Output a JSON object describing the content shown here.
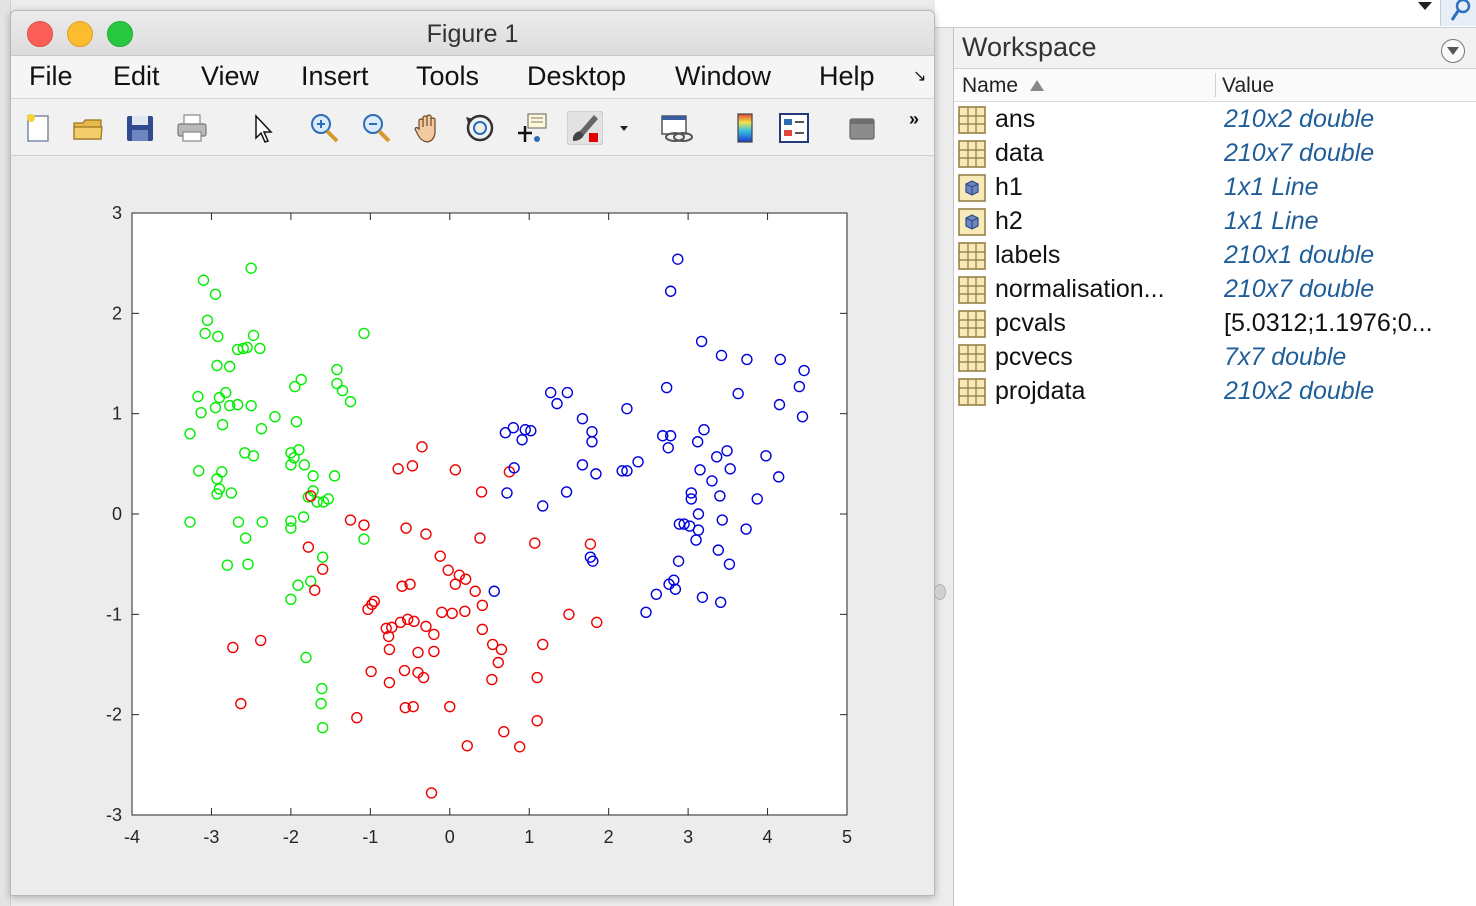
{
  "figure": {
    "title": "Figure 1",
    "menu": [
      "File",
      "Edit",
      "View",
      "Insert",
      "Tools",
      "Desktop",
      "Window",
      "Help"
    ],
    "menu_overflow": "↘",
    "toolbar": {
      "icons": [
        "new-figure-icon",
        "open-file-icon",
        "save-icon",
        "print-icon",
        "pointer-icon",
        "zoom-in-icon",
        "zoom-out-icon",
        "pan-hand-icon",
        "rotate-3d-icon",
        "data-cursor-icon",
        "brush-icon",
        "brush-dropdown-icon",
        "link-plot-icon",
        "colorbar-icon",
        "legend-icon",
        "hide-plot-tools-icon"
      ],
      "overflow": "»"
    }
  },
  "workspace": {
    "title": "Workspace",
    "columns": {
      "name": "Name",
      "value": "Value"
    },
    "variables": [
      {
        "name": "ans",
        "value": "210x2 double",
        "icon": "matrix-icon",
        "italic": true
      },
      {
        "name": "data",
        "value": "210x7 double",
        "icon": "matrix-icon",
        "italic": true
      },
      {
        "name": "h1",
        "value": "1x1 Line",
        "icon": "object-icon",
        "italic": true
      },
      {
        "name": "h2",
        "value": "1x1 Line",
        "icon": "object-icon",
        "italic": true
      },
      {
        "name": "labels",
        "value": "210x1 double",
        "icon": "matrix-icon",
        "italic": true
      },
      {
        "name": "normalisation...",
        "value": "210x7 double",
        "icon": "matrix-icon",
        "italic": true
      },
      {
        "name": "pcvals",
        "value": "[5.0312;1.1976;0...",
        "icon": "matrix-icon",
        "italic": false
      },
      {
        "name": "pcvecs",
        "value": "7x7 double",
        "icon": "matrix-icon",
        "italic": true
      },
      {
        "name": "projdata",
        "value": "210x2 double",
        "icon": "matrix-icon",
        "italic": true
      }
    ]
  },
  "colors": {
    "series_green": "#00ee00",
    "series_red": "#ee0000",
    "series_blue": "#0000dd",
    "value_text": "#1f5e99"
  },
  "chart_data": {
    "type": "scatter",
    "title": "",
    "xlabel": "",
    "ylabel": "",
    "xlim": [
      -4,
      5
    ],
    "ylim": [
      -3,
      3
    ],
    "xticks": [
      "-4",
      "-3",
      "-2",
      "-1",
      "0",
      "1",
      "2",
      "3",
      "4",
      "5"
    ],
    "yticks": [
      "-3",
      "-2",
      "-1",
      "0",
      "1",
      "2",
      "3"
    ],
    "grid": false,
    "marker": "circle-open",
    "series": [
      {
        "color": "#00ee00",
        "points": [
          [
            -2.5,
            2.45
          ],
          [
            -3.1,
            2.33
          ],
          [
            -2.95,
            2.19
          ],
          [
            -3.05,
            1.93
          ],
          [
            -3.08,
            1.8
          ],
          [
            -2.92,
            1.77
          ],
          [
            -2.47,
            1.78
          ],
          [
            -2.55,
            1.66
          ],
          [
            -2.6,
            1.65
          ],
          [
            -2.67,
            1.64
          ],
          [
            -2.39,
            1.65
          ],
          [
            -1.08,
            1.8
          ],
          [
            -2.93,
            1.48
          ],
          [
            -2.77,
            1.47
          ],
          [
            -1.42,
            1.44
          ],
          [
            -3.17,
            1.17
          ],
          [
            -2.9,
            1.16
          ],
          [
            -2.82,
            1.21
          ],
          [
            -2.5,
            1.08
          ],
          [
            -2.67,
            1.09
          ],
          [
            -2.95,
            1.06
          ],
          [
            -2.77,
            1.08
          ],
          [
            -1.87,
            1.34
          ],
          [
            -1.42,
            1.3
          ],
          [
            -1.95,
            1.27
          ],
          [
            -1.35,
            1.23
          ],
          [
            -1.25,
            1.12
          ],
          [
            -3.13,
            1.01
          ],
          [
            -2.2,
            0.97
          ],
          [
            -1.93,
            0.92
          ],
          [
            -2.86,
            0.89
          ],
          [
            -2.37,
            0.85
          ],
          [
            -3.27,
            0.8
          ],
          [
            -2.58,
            0.61
          ],
          [
            -2.47,
            0.58
          ],
          [
            -1.9,
            0.64
          ],
          [
            -2.0,
            0.61
          ],
          [
            -2.0,
            0.49
          ],
          [
            -1.96,
            0.56
          ],
          [
            -1.83,
            0.49
          ],
          [
            -3.16,
            0.43
          ],
          [
            -2.87,
            0.42
          ],
          [
            -2.93,
            0.35
          ],
          [
            -2.9,
            0.25
          ],
          [
            -2.93,
            0.2
          ],
          [
            -2.75,
            0.21
          ],
          [
            -1.72,
            0.38
          ],
          [
            -1.45,
            0.38
          ],
          [
            -1.78,
            0.17
          ],
          [
            -1.72,
            0.23
          ],
          [
            -1.67,
            0.12
          ],
          [
            -1.59,
            0.12
          ],
          [
            -1.53,
            0.15
          ],
          [
            -3.27,
            -0.08
          ],
          [
            -2.66,
            -0.08
          ],
          [
            -2.36,
            -0.08
          ],
          [
            -2.0,
            -0.07
          ],
          [
            -1.84,
            -0.03
          ],
          [
            -2.0,
            -0.14
          ],
          [
            -2.57,
            -0.24
          ],
          [
            -1.08,
            -0.25
          ],
          [
            -1.6,
            -0.43
          ],
          [
            -2.8,
            -0.51
          ],
          [
            -2.54,
            -0.5
          ],
          [
            -1.91,
            -0.71
          ],
          [
            -1.75,
            -0.67
          ],
          [
            -2.0,
            -0.85
          ],
          [
            -1.81,
            -1.43
          ],
          [
            -1.61,
            -1.74
          ],
          [
            -1.62,
            -1.89
          ],
          [
            -1.6,
            -2.13
          ]
        ]
      },
      {
        "color": "#ee0000",
        "points": [
          [
            -0.35,
            0.67
          ],
          [
            -0.65,
            0.45
          ],
          [
            -0.47,
            0.48
          ],
          [
            0.07,
            0.44
          ],
          [
            0.75,
            0.42
          ],
          [
            0.4,
            0.22
          ],
          [
            -1.75,
            0.18
          ],
          [
            -1.25,
            -0.06
          ],
          [
            -1.08,
            -0.11
          ],
          [
            -0.55,
            -0.14
          ],
          [
            -0.3,
            -0.2
          ],
          [
            0.38,
            -0.24
          ],
          [
            1.07,
            -0.29
          ],
          [
            1.77,
            -0.3
          ],
          [
            -1.78,
            -0.33
          ],
          [
            -1.6,
            -0.55
          ],
          [
            -0.12,
            -0.42
          ],
          [
            -0.02,
            -0.56
          ],
          [
            0.12,
            -0.61
          ],
          [
            0.2,
            -0.65
          ],
          [
            0.07,
            -0.7
          ],
          [
            -0.5,
            -0.7
          ],
          [
            -0.6,
            -0.72
          ],
          [
            -1.7,
            -0.76
          ],
          [
            0.32,
            -0.77
          ],
          [
            -0.95,
            -0.87
          ],
          [
            -0.98,
            -0.9
          ],
          [
            -1.03,
            -0.95
          ],
          [
            -0.1,
            -0.98
          ],
          [
            0.03,
            -0.99
          ],
          [
            0.19,
            -0.97
          ],
          [
            0.41,
            -0.91
          ],
          [
            -0.53,
            -1.05
          ],
          [
            -0.45,
            -1.07
          ],
          [
            -0.62,
            -1.08
          ],
          [
            -0.3,
            -1.12
          ],
          [
            -0.73,
            -1.13
          ],
          [
            -0.8,
            -1.14
          ],
          [
            -0.2,
            -1.2
          ],
          [
            -0.77,
            -1.22
          ],
          [
            0.41,
            -1.15
          ],
          [
            1.5,
            -1.0
          ],
          [
            1.85,
            -1.08
          ],
          [
            -0.76,
            -1.35
          ],
          [
            -0.4,
            -1.38
          ],
          [
            -0.2,
            -1.37
          ],
          [
            0.54,
            -1.3
          ],
          [
            1.17,
            -1.3
          ],
          [
            -2.73,
            -1.33
          ],
          [
            -2.38,
            -1.26
          ],
          [
            -0.99,
            -1.57
          ],
          [
            -0.57,
            -1.56
          ],
          [
            -0.4,
            -1.58
          ],
          [
            0.61,
            -1.48
          ],
          [
            -0.76,
            -1.68
          ],
          [
            -0.33,
            -1.63
          ],
          [
            0.53,
            -1.65
          ],
          [
            1.1,
            -1.63
          ],
          [
            -2.63,
            -1.89
          ],
          [
            -0.56,
            -1.93
          ],
          [
            -0.46,
            -1.92
          ],
          [
            0.0,
            -1.92
          ],
          [
            -1.17,
            -2.03
          ],
          [
            1.1,
            -2.06
          ],
          [
            0.68,
            -2.17
          ],
          [
            0.22,
            -2.31
          ],
          [
            0.88,
            -2.32
          ],
          [
            -0.23,
            -2.78
          ],
          [
            0.65,
            -1.35
          ]
        ]
      },
      {
        "color": "#0000dd",
        "points": [
          [
            2.87,
            2.54
          ],
          [
            2.78,
            2.22
          ],
          [
            3.17,
            1.72
          ],
          [
            3.42,
            1.58
          ],
          [
            3.74,
            1.54
          ],
          [
            4.16,
            1.54
          ],
          [
            4.46,
            1.43
          ],
          [
            2.73,
            1.26
          ],
          [
            4.4,
            1.27
          ],
          [
            1.27,
            1.21
          ],
          [
            1.48,
            1.21
          ],
          [
            1.35,
            1.1
          ],
          [
            3.63,
            1.2
          ],
          [
            4.15,
            1.09
          ],
          [
            2.23,
            1.05
          ],
          [
            4.44,
            0.97
          ],
          [
            1.67,
            0.95
          ],
          [
            0.8,
            0.86
          ],
          [
            0.95,
            0.84
          ],
          [
            1.02,
            0.83
          ],
          [
            0.7,
            0.81
          ],
          [
            0.91,
            0.74
          ],
          [
            1.79,
            0.82
          ],
          [
            3.2,
            0.84
          ],
          [
            2.68,
            0.78
          ],
          [
            2.78,
            0.78
          ],
          [
            3.12,
            0.72
          ],
          [
            1.79,
            0.72
          ],
          [
            2.75,
            0.66
          ],
          [
            3.49,
            0.63
          ],
          [
            3.36,
            0.57
          ],
          [
            3.98,
            0.58
          ],
          [
            1.67,
            0.49
          ],
          [
            2.37,
            0.52
          ],
          [
            2.17,
            0.43
          ],
          [
            2.23,
            0.43
          ],
          [
            3.15,
            0.44
          ],
          [
            3.53,
            0.45
          ],
          [
            1.84,
            0.4
          ],
          [
            4.14,
            0.37
          ],
          [
            3.3,
            0.33
          ],
          [
            0.81,
            0.46
          ],
          [
            0.72,
            0.21
          ],
          [
            1.47,
            0.22
          ],
          [
            3.04,
            0.21
          ],
          [
            3.4,
            0.18
          ],
          [
            3.87,
            0.15
          ],
          [
            3.04,
            0.15
          ],
          [
            1.17,
            0.08
          ],
          [
            3.13,
            0.0
          ],
          [
            3.43,
            -0.06
          ],
          [
            2.89,
            -0.1
          ],
          [
            2.95,
            -0.1
          ],
          [
            3.02,
            -0.12
          ],
          [
            3.13,
            -0.16
          ],
          [
            3.73,
            -0.15
          ],
          [
            3.1,
            -0.26
          ],
          [
            1.77,
            -0.43
          ],
          [
            3.38,
            -0.36
          ],
          [
            3.52,
            -0.5
          ],
          [
            2.88,
            -0.47
          ],
          [
            1.8,
            -0.47
          ],
          [
            0.56,
            -0.77
          ],
          [
            2.82,
            -0.66
          ],
          [
            2.76,
            -0.7
          ],
          [
            2.84,
            -0.75
          ],
          [
            2.6,
            -0.8
          ],
          [
            3.18,
            -0.83
          ],
          [
            3.41,
            -0.88
          ],
          [
            2.47,
            -0.98
          ]
        ]
      }
    ]
  }
}
